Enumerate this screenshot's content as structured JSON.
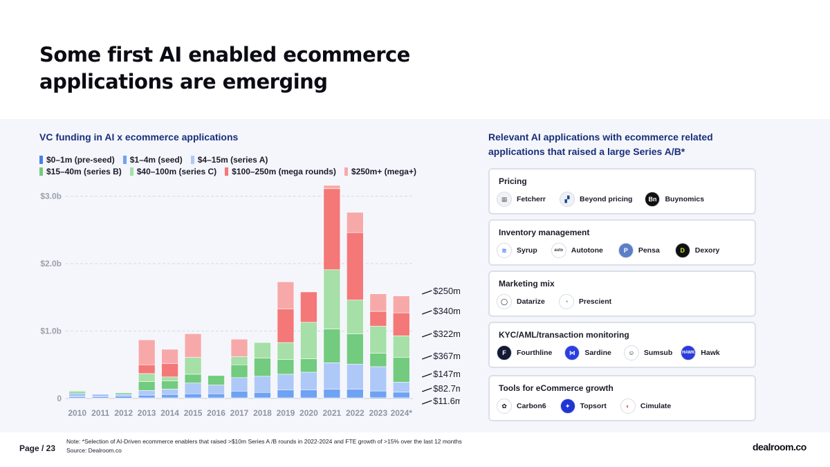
{
  "title": "Some first AI enabled ecommerce applications are emerging",
  "chart_section_title": "VC funding in AI x ecommerce applications",
  "right_section_title": "Relevant AI applications with ecommerce related applications that raised a large Series A/B*",
  "colors": {
    "pre_seed": "#4a7fe8",
    "seed": "#6fa2f2",
    "series_a": "#aec8f7",
    "series_b": "#72cb7e",
    "series_c": "#a6dfa8",
    "mega": "#f47878",
    "mega_plus": "#f7a9a9",
    "title_blue": "#1a2e7a"
  },
  "chart_data": {
    "type": "bar",
    "stacked": true,
    "title": "VC funding in AI x ecommerce applications",
    "xlabel": "",
    "ylabel": "",
    "ylim": [
      0,
      3.2
    ],
    "y_ticks": [
      0,
      1.0,
      2.0,
      3.0
    ],
    "y_tick_labels": [
      "0",
      "$1.0b",
      "$2.0b",
      "$3.0b"
    ],
    "grid": true,
    "legend_position": "top",
    "categories": [
      "2010",
      "2011",
      "2012",
      "2013",
      "2014",
      "2015",
      "2016",
      "2017",
      "2018",
      "2019",
      "2020",
      "2021",
      "2022",
      "2023",
      "2024*"
    ],
    "series": [
      {
        "name": "$0–1m (pre-seed)",
        "color": "#4a7fe8",
        "values": [
          0.005,
          0.005,
          0.005,
          0.01,
          0.01,
          0.01,
          0.01,
          0.01,
          0.01,
          0.01,
          0.01,
          0.01,
          0.01,
          0.012,
          0.0116
        ]
      },
      {
        "name": "$1–4m (seed)",
        "color": "#6fa2f2",
        "values": [
          0.02,
          0.02,
          0.03,
          0.04,
          0.05,
          0.06,
          0.06,
          0.1,
          0.08,
          0.12,
          0.12,
          0.13,
          0.13,
          0.1,
          0.0827
        ]
      },
      {
        "name": "$4–15m (series A)",
        "color": "#aec8f7",
        "values": [
          0.05,
          0.04,
          0.03,
          0.07,
          0.08,
          0.16,
          0.13,
          0.2,
          0.24,
          0.23,
          0.26,
          0.39,
          0.37,
          0.36,
          0.147
        ]
      },
      {
        "name": "$15–40m (series B)",
        "color": "#72cb7e",
        "values": [
          0.02,
          0.0,
          0.02,
          0.13,
          0.12,
          0.13,
          0.14,
          0.19,
          0.27,
          0.22,
          0.2,
          0.5,
          0.45,
          0.2,
          0.367
        ]
      },
      {
        "name": "$40–100m (series C)",
        "color": "#a6dfa8",
        "values": [
          0.02,
          0.0,
          0.0,
          0.12,
          0.06,
          0.25,
          0.0,
          0.12,
          0.23,
          0.25,
          0.54,
          0.88,
          0.5,
          0.4,
          0.322
        ]
      },
      {
        "name": "$100–250m (mega rounds)",
        "color": "#f47878",
        "values": [
          0.0,
          0.0,
          0.0,
          0.13,
          0.2,
          0.0,
          0.0,
          0.0,
          0.0,
          0.5,
          0.45,
          1.2,
          1.0,
          0.22,
          0.34
        ]
      },
      {
        "name": "$250m+ (mega+)",
        "color": "#f7a9a9",
        "values": [
          0.0,
          0.0,
          0.0,
          0.37,
          0.21,
          0.35,
          0.0,
          0.26,
          0.0,
          0.4,
          0.0,
          0.05,
          0.3,
          0.26,
          0.25
        ]
      }
    ],
    "annotations": [
      "$250m",
      "$340m",
      "$322m",
      "$367m",
      "$147m",
      "$82.7m",
      "$11.6m"
    ]
  },
  "categories_panel": [
    {
      "title": "Pricing",
      "apps": [
        {
          "name": "Fetcherr",
          "logo": "▦",
          "logo_bg": "#f1f2f5",
          "logo_fg": "#777"
        },
        {
          "name": "Beyond pricing",
          "logo": "▞",
          "logo_bg": "#eef1f6",
          "logo_fg": "#1e4b8f"
        },
        {
          "name": "Buynomics",
          "logo": "Bn",
          "logo_bg": "#111111",
          "logo_fg": "#ffffff"
        }
      ]
    },
    {
      "title": "Inventory management",
      "apps": [
        {
          "name": "Syrup",
          "logo": "≋",
          "logo_bg": "#ffffff",
          "logo_fg": "#2a6ee8"
        },
        {
          "name": "Autotone",
          "logo": "auto",
          "logo_bg": "#ffffff",
          "logo_fg": "#333"
        },
        {
          "name": "Pensa",
          "logo": "P",
          "logo_bg": "#5b7fc7",
          "logo_fg": "#ffffff"
        },
        {
          "name": "Dexory",
          "logo": "D",
          "logo_bg": "#111111",
          "logo_fg": "#b9f33c"
        }
      ]
    },
    {
      "title": "Marketing mix",
      "apps": [
        {
          "name": "Datarize",
          "logo": "◯",
          "logo_bg": "#ffffff",
          "logo_fg": "#111"
        },
        {
          "name": "Prescient",
          "logo": "◔",
          "logo_bg": "#ffffff",
          "logo_fg": "#3a9a4e"
        }
      ]
    },
    {
      "title": "KYC/AML/transaction monitoring",
      "apps": [
        {
          "name": "Fourthline",
          "logo": "F",
          "logo_bg": "#141a33",
          "logo_fg": "#ffffff"
        },
        {
          "name": "Sardine",
          "logo": "⋈",
          "logo_bg": "#2b3fe0",
          "logo_fg": "#ffffff"
        },
        {
          "name": "Sumsub",
          "logo": "☺",
          "logo_bg": "#ffffff",
          "logo_fg": "#111"
        },
        {
          "name": "Hawk",
          "logo": "HAWK",
          "logo_bg": "#2c3cd8",
          "logo_fg": "#ffffff"
        }
      ]
    },
    {
      "title": "Tools for eCommerce growth",
      "apps": [
        {
          "name": "Carbon6",
          "logo": "✿",
          "logo_bg": "#ffffff",
          "logo_fg": "#111"
        },
        {
          "name": "Topsort",
          "logo": "✦",
          "logo_bg": "#1f35d6",
          "logo_fg": "#ffffff"
        },
        {
          "name": "Cimulate",
          "logo": "◐",
          "logo_bg": "#ffffff",
          "logo_fg": "#e05050"
        }
      ]
    }
  ],
  "footer": {
    "page": "Page / 23",
    "note": "Note: *Selection of AI-Driven ecommerce enablers that raised >$10m Series A /B rounds in 2022-2024 and FTE growth of >15% over the last 12 months",
    "source": "Source:   Dealroom.co",
    "brand": "dealroom.co"
  }
}
